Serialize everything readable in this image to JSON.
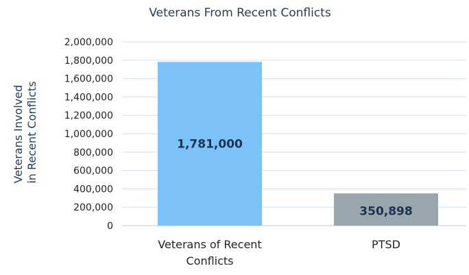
{
  "chart_data": {
    "type": "bar",
    "title": "Veterans From Recent Conflicts",
    "ylabel": [
      "Veterans Involved",
      "in Recent Conflicts"
    ],
    "xlabel": "",
    "categories": [
      [
        "Veterans of Recent",
        "Conflicts"
      ],
      [
        "PTSD"
      ]
    ],
    "values": [
      1781000,
      350898
    ],
    "data_labels": [
      "1,781,000",
      "350,898"
    ],
    "bar_colors": [
      "#7cc2f9",
      "#9aa6ad"
    ],
    "ylim": [
      0,
      2000000
    ],
    "yticks": [
      0,
      200000,
      400000,
      600000,
      800000,
      1000000,
      1200000,
      1400000,
      1600000,
      1800000,
      2000000
    ],
    "ytick_labels": [
      "0",
      "200,000",
      "400,000",
      "600,000",
      "800,000",
      "1,000,000",
      "1,200,000",
      "1,400,000",
      "1,600,000",
      "1,800,000",
      "2,000,000"
    ],
    "grid": true,
    "legend": "none"
  }
}
